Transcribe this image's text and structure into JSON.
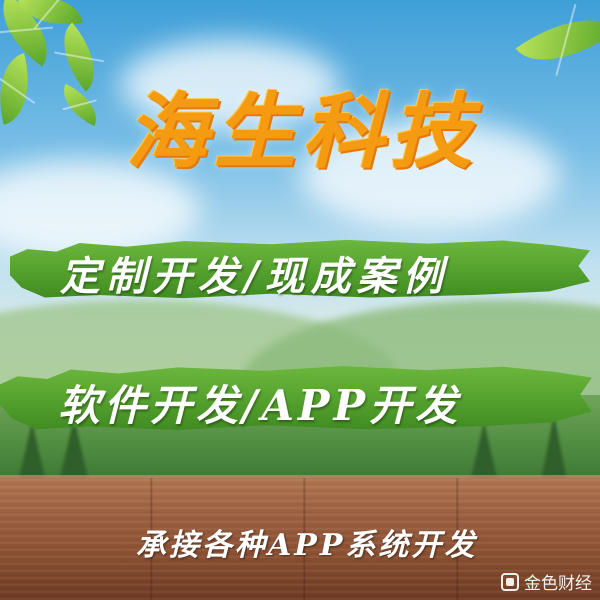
{
  "banner": {
    "title": "海生科技",
    "line1": "定制开发/现成案例",
    "line2": "软件开发/APP开发",
    "line3": "承接各种APP系统开发"
  },
  "watermark": {
    "text": "金色财经",
    "icon": "watermark-logo-icon"
  },
  "colors": {
    "title": "#f59b12",
    "brush": "#58a530",
    "wood": "#9c6040",
    "sky": "#76bde6"
  }
}
